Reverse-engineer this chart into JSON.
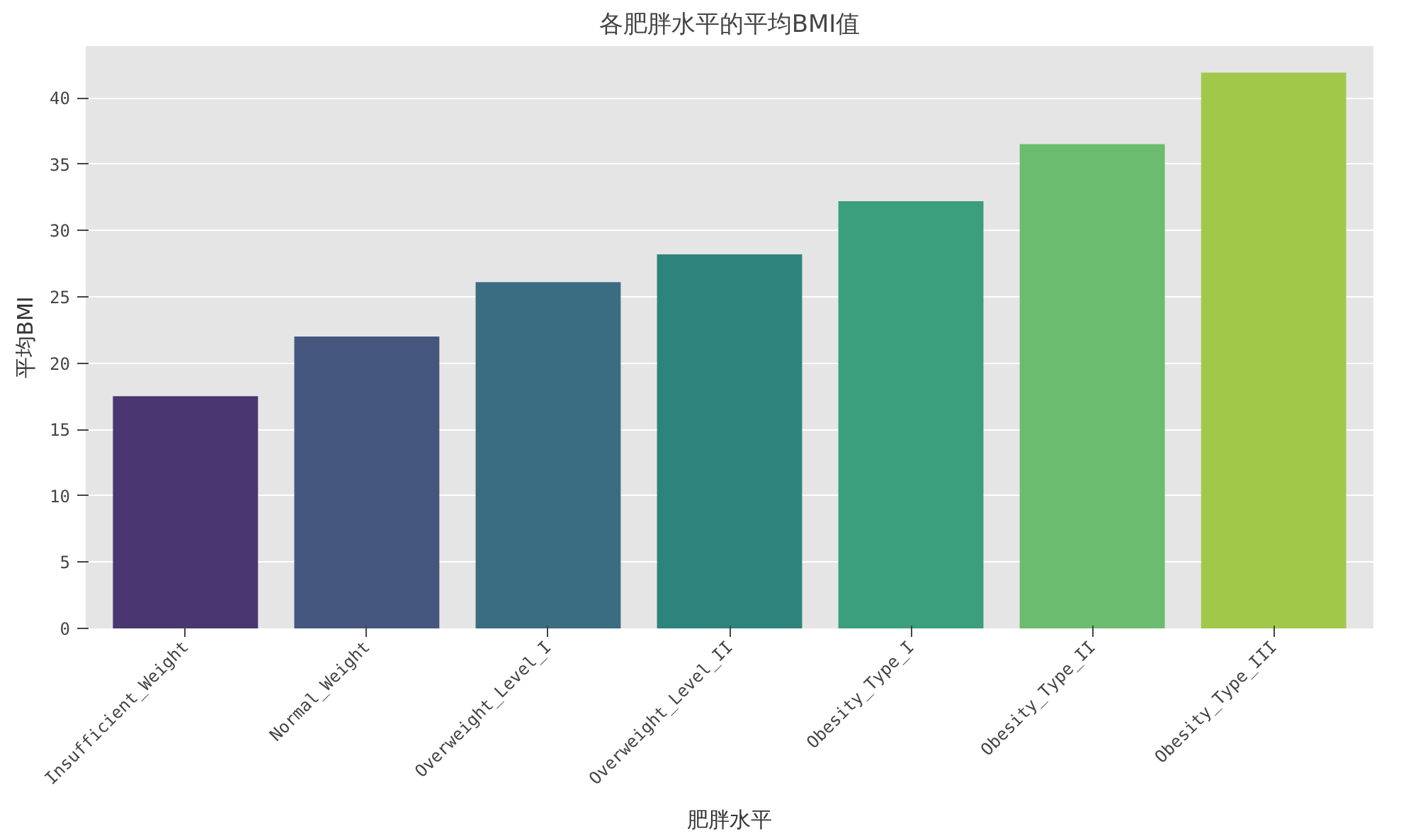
{
  "chart_data": {
    "type": "bar",
    "title": "各肥胖水平的平均BMI值",
    "xlabel": "肥胖水平",
    "ylabel": "平均BMI",
    "categories": [
      "Insufficient_Weight",
      "Normal_Weight",
      "Overweight_Level_I",
      "Overweight_Level_II",
      "Obesity_Type_I",
      "Obesity_Type_II",
      "Obesity_Type_III"
    ],
    "values": [
      17.5,
      22.0,
      26.1,
      28.2,
      32.2,
      36.5,
      41.9
    ],
    "colors": [
      "#4a3670",
      "#45577e",
      "#3a6d81",
      "#2e837d",
      "#3b9e7c",
      "#6bbc6e",
      "#a2c84a"
    ],
    "ylim": [
      0,
      43.9
    ],
    "yticks": [
      0,
      5,
      10,
      15,
      20,
      25,
      30,
      35,
      40
    ],
    "grid": "y"
  }
}
